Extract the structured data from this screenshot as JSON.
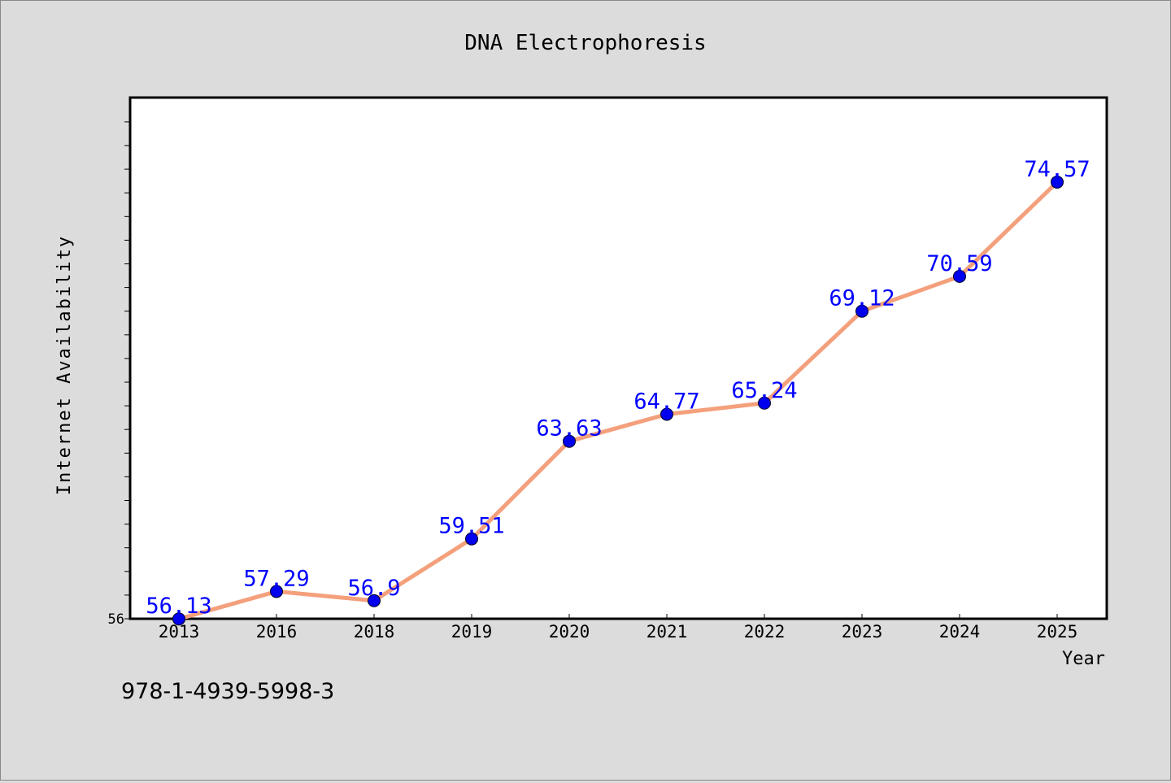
{
  "chart_data": {
    "type": "line",
    "title": "DNA Electrophoresis",
    "xlabel": "Year",
    "ylabel": "Internet Availability",
    "categories": [
      "2013",
      "2016",
      "2018",
      "2019",
      "2020",
      "2021",
      "2022",
      "2023",
      "2024",
      "2025"
    ],
    "series": [
      {
        "values": [
          56.13,
          57.29,
          56.9,
          59.51,
          63.63,
          64.77,
          65.24,
          69.12,
          70.59,
          74.57
        ],
        "labels": [
          "56.13",
          "57.29",
          "56.9",
          "59.51",
          "63.63",
          "64.77",
          "65.24",
          "69.12",
          "70.59",
          "74.57"
        ],
        "line_color": "#f4a07c",
        "marker_color": "#0000ee",
        "label_color": "#0000ff"
      }
    ],
    "ylim": [
      56,
      78
    ],
    "y_tick_labels": [
      "56"
    ],
    "grid": false,
    "legend": "none"
  },
  "footer": {
    "isbn": "978-1-4939-5998-3"
  },
  "colors": {
    "background": "#dcdcdc",
    "plot_background": "#ffffff",
    "axis": "#000000"
  }
}
